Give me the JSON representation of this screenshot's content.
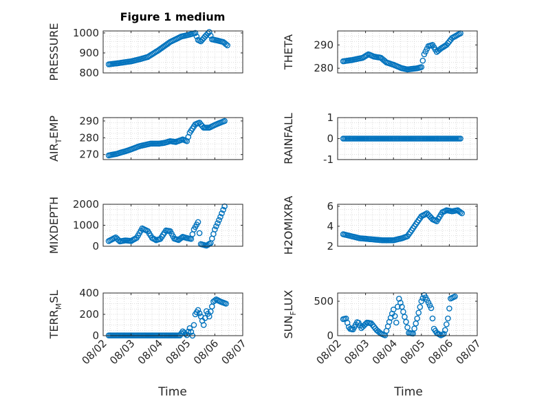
{
  "chart_data": {
    "type": "scatter",
    "title": "Figure 1 medium",
    "marker_color": "#0072BD",
    "x_tick_labels": [
      "08/02",
      "08/03",
      "08/04",
      "08/05",
      "08/06",
      "08/07"
    ],
    "x_domain_days": [
      0,
      5
    ],
    "xlabel": "Time",
    "panels": [
      {
        "id": "pressure",
        "ylabel": "PRESSURE",
        "ylim": [
          800,
          1010
        ],
        "yticks": [
          800,
          900,
          1000
        ],
        "ytick_labels": [
          "800",
          "900",
          "1000"
        ],
        "anchors": [
          [
            0.2,
            843
          ],
          [
            0.5,
            848
          ],
          [
            1.0,
            858
          ],
          [
            1.3,
            868
          ],
          [
            1.6,
            880
          ],
          [
            2.0,
            915
          ],
          [
            2.4,
            955
          ],
          [
            2.8,
            982
          ],
          [
            3.1,
            992
          ],
          [
            3.3,
            1000
          ],
          [
            3.4,
            965
          ],
          [
            3.5,
            958
          ],
          [
            3.65,
            982
          ],
          [
            3.8,
            1005
          ],
          [
            3.9,
            968
          ],
          [
            4.1,
            962
          ],
          [
            4.3,
            955
          ],
          [
            4.45,
            938
          ]
        ]
      },
      {
        "id": "theta",
        "ylabel": "THETA",
        "ylim": [
          278,
          296
        ],
        "yticks": [
          280,
          290
        ],
        "ytick_labels": [
          "280",
          "290"
        ],
        "anchors": [
          [
            0.2,
            283
          ],
          [
            0.5,
            283.5
          ],
          [
            0.9,
            284.5
          ],
          [
            1.1,
            286
          ],
          [
            1.3,
            285
          ],
          [
            1.55,
            284.5
          ],
          [
            1.75,
            282.5
          ],
          [
            2.0,
            281.5
          ],
          [
            2.3,
            280
          ],
          [
            2.5,
            279.5
          ],
          [
            2.85,
            280
          ],
          [
            3.0,
            280.5
          ],
          [
            3.1,
            286
          ],
          [
            3.25,
            289.5
          ],
          [
            3.4,
            290
          ],
          [
            3.55,
            287
          ],
          [
            3.7,
            288.5
          ],
          [
            3.9,
            290
          ],
          [
            4.1,
            293
          ],
          [
            4.4,
            295
          ]
        ]
      },
      {
        "id": "air_temp",
        "ylabel": "AIR",
        "ylabel_sub": "T",
        "ylabel_rest": "EMP",
        "ylim": [
          267,
          292
        ],
        "yticks": [
          270,
          280,
          290
        ],
        "ytick_labels": [
          "270",
          "280",
          "290"
        ],
        "anchors": [
          [
            0.2,
            269.5
          ],
          [
            0.5,
            270.5
          ],
          [
            0.9,
            272.5
          ],
          [
            1.3,
            275
          ],
          [
            1.7,
            276.5
          ],
          [
            2.0,
            276.5
          ],
          [
            2.2,
            277
          ],
          [
            2.4,
            278
          ],
          [
            2.6,
            277.5
          ],
          [
            2.85,
            279
          ],
          [
            3.0,
            278
          ],
          [
            3.1,
            283
          ],
          [
            3.3,
            288
          ],
          [
            3.45,
            289
          ],
          [
            3.6,
            286
          ],
          [
            3.8,
            286
          ],
          [
            4.05,
            288
          ],
          [
            4.35,
            290
          ]
        ]
      },
      {
        "id": "rainfall",
        "ylabel": "RAINFALL",
        "ylim": [
          -1,
          1
        ],
        "yticks": [
          -1,
          0,
          1
        ],
        "ytick_labels": [
          "-1",
          "0",
          "1"
        ],
        "anchors": [
          [
            0.2,
            0
          ],
          [
            4.4,
            0
          ]
        ]
      },
      {
        "id": "mixdepth",
        "ylabel": "MIXDEPTH",
        "ylim": [
          0,
          2000
        ],
        "yticks": [
          0,
          1000,
          2000
        ],
        "ytick_labels": [
          "0",
          "1000",
          "2000"
        ],
        "anchors": [
          [
            0.2,
            250
          ],
          [
            0.45,
            420
          ],
          [
            0.6,
            230
          ],
          [
            0.8,
            280
          ],
          [
            1.0,
            250
          ],
          [
            1.2,
            400
          ],
          [
            1.4,
            850
          ],
          [
            1.6,
            720
          ],
          [
            1.75,
            400
          ],
          [
            1.9,
            290
          ],
          [
            2.05,
            350
          ],
          [
            2.25,
            750
          ],
          [
            2.4,
            720
          ],
          [
            2.55,
            360
          ],
          [
            2.7,
            300
          ],
          [
            2.85,
            450
          ],
          [
            3.0,
            390
          ],
          [
            3.15,
            350
          ],
          [
            3.25,
            800
          ],
          [
            3.4,
            1150
          ],
          [
            3.5,
            100
          ],
          [
            3.7,
            30
          ],
          [
            3.85,
            150
          ],
          [
            4.0,
            800
          ],
          [
            4.2,
            1400
          ],
          [
            4.35,
            1900
          ]
        ]
      },
      {
        "id": "h2omixra",
        "ylabel": "H2OMIXRA",
        "ylim": [
          2,
          6.2
        ],
        "yticks": [
          2,
          4,
          6
        ],
        "ytick_labels": [
          "2",
          "4",
          "6"
        ],
        "anchors": [
          [
            0.2,
            3.2
          ],
          [
            0.5,
            3.0
          ],
          [
            0.8,
            2.8
          ],
          [
            1.2,
            2.7
          ],
          [
            1.6,
            2.6
          ],
          [
            2.0,
            2.6
          ],
          [
            2.3,
            2.8
          ],
          [
            2.5,
            3.0
          ],
          [
            2.65,
            3.6
          ],
          [
            2.8,
            4.2
          ],
          [
            3.0,
            5.0
          ],
          [
            3.2,
            5.3
          ],
          [
            3.4,
            4.7
          ],
          [
            3.55,
            4.5
          ],
          [
            3.75,
            5.4
          ],
          [
            3.9,
            5.6
          ],
          [
            4.1,
            5.5
          ],
          [
            4.3,
            5.6
          ],
          [
            4.45,
            5.3
          ]
        ]
      },
      {
        "id": "terr_msl",
        "ylabel": "TERR",
        "ylabel_sub": "M",
        "ylabel_rest": "SL",
        "ylim": [
          0,
          400
        ],
        "yticks": [
          0,
          200,
          400
        ],
        "ytick_labels": [
          "0",
          "200",
          "400"
        ],
        "anchors": [
          [
            0.2,
            2
          ],
          [
            2.75,
            2
          ],
          [
            2.85,
            40
          ],
          [
            3.0,
            5
          ],
          [
            3.1,
            70
          ],
          [
            3.2,
            0
          ],
          [
            3.3,
            200
          ],
          [
            3.4,
            240
          ],
          [
            3.5,
            180
          ],
          [
            3.6,
            100
          ],
          [
            3.7,
            230
          ],
          [
            3.8,
            180
          ],
          [
            3.95,
            320
          ],
          [
            4.05,
            340
          ],
          [
            4.2,
            320
          ],
          [
            4.4,
            300
          ]
        ]
      },
      {
        "id": "sun_flux",
        "ylabel": "SUN",
        "ylabel_sub": "F",
        "ylabel_rest": "LUX",
        "ylim": [
          0,
          620
        ],
        "yticks": [
          0,
          500
        ],
        "ytick_labels": [
          "0",
          "500"
        ],
        "anchors": [
          [
            0.2,
            240
          ],
          [
            0.3,
            250
          ],
          [
            0.42,
            100
          ],
          [
            0.55,
            90
          ],
          [
            0.72,
            210
          ],
          [
            0.85,
            110
          ],
          [
            1.05,
            190
          ],
          [
            1.2,
            180
          ],
          [
            1.4,
            80
          ],
          [
            1.55,
            30
          ],
          [
            1.7,
            5
          ],
          [
            1.85,
            200
          ],
          [
            2.0,
            380
          ],
          [
            2.1,
            190
          ],
          [
            2.18,
            560
          ],
          [
            2.3,
            420
          ],
          [
            2.45,
            200
          ],
          [
            2.55,
            40
          ],
          [
            2.7,
            30
          ],
          [
            2.85,
            250
          ],
          [
            3.0,
            500
          ],
          [
            3.1,
            590
          ],
          [
            3.2,
            520
          ],
          [
            3.35,
            400
          ],
          [
            3.45,
            100
          ],
          [
            3.55,
            40
          ],
          [
            3.7,
            5
          ],
          [
            3.82,
            30
          ],
          [
            3.95,
            250
          ],
          [
            4.05,
            540
          ],
          [
            4.2,
            570
          ]
        ]
      }
    ]
  }
}
